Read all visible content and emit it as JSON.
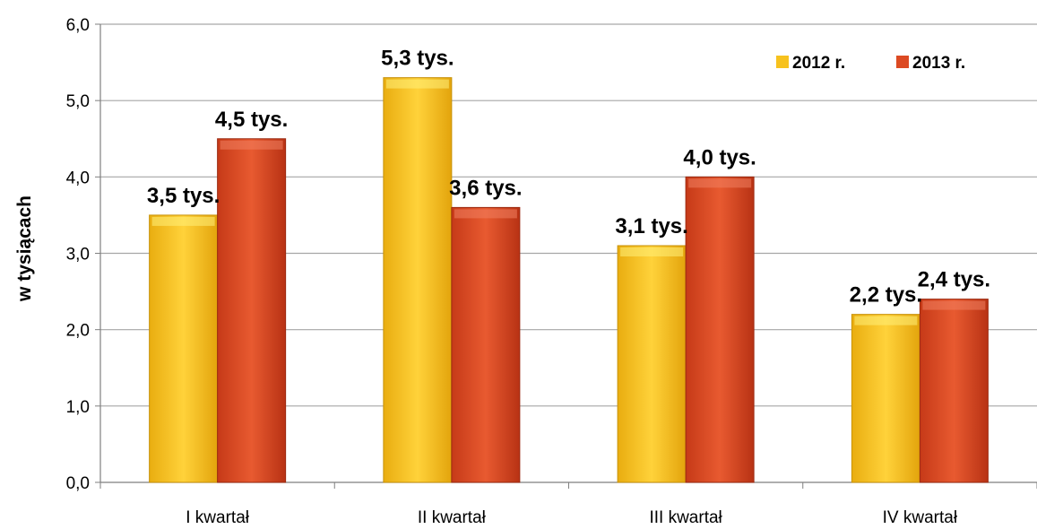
{
  "colors": {
    "series_2012": "#f7c21e",
    "series_2013": "#dc4a23",
    "grid": "#a6a6a6",
    "axis": "#7f7f7f"
  },
  "chart_data": {
    "type": "bar",
    "categories": [
      "I kwartał",
      "II kwartał",
      "III kwartał",
      "IV kwartał"
    ],
    "series": [
      {
        "name": "2012 r.",
        "values": [
          3.5,
          5.3,
          3.1,
          2.2
        ],
        "labels": [
          "3,5 tys.",
          "5,3 tys.",
          "3,1 tys.",
          "2,2 tys."
        ]
      },
      {
        "name": "2013 r.",
        "values": [
          4.5,
          3.6,
          4.0,
          2.4
        ],
        "labels": [
          "4,5 tys.",
          "3,6 tys.",
          "4,0 tys.",
          "2,4 tys."
        ]
      }
    ],
    "title": "",
    "xlabel": "",
    "ylabel": "w tysiącach",
    "ylim": [
      0,
      6
    ],
    "yticks": [
      0,
      1,
      2,
      3,
      4,
      5,
      6
    ],
    "ytick_labels": [
      "0,0",
      "1,0",
      "2,0",
      "3,0",
      "4,0",
      "5,0",
      "6,0"
    ],
    "grid": true,
    "legend_position": "top-right"
  }
}
